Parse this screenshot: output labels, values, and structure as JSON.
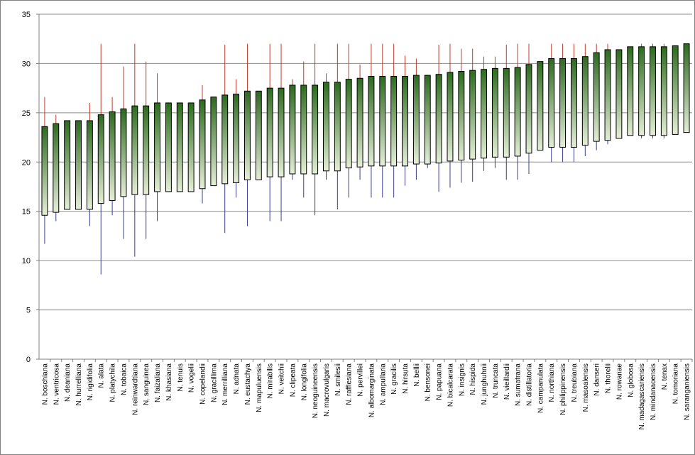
{
  "chart_data": {
    "type": "range-bar",
    "description_free": true,
    "ylim": [
      0,
      35
    ],
    "yticks": [
      0,
      5,
      10,
      15,
      20,
      25,
      30,
      35
    ],
    "grid": true,
    "colors": {
      "bar_top": "#2d6a1f",
      "bar_bottom": "#e6efd8",
      "bar_border": "#000000",
      "whisker_up": "#c0392b",
      "whisker_down": "#3b3b8f",
      "gridline": "#8c8c8c",
      "frame": "#808080"
    },
    "categories": [
      "N. boschiana",
      "N. ventricosa",
      "N. deaniana",
      "N. hurrelliana",
      "N. rigidifolia",
      "N. alata",
      "N. platychila",
      "N. tobaica",
      "N. reinwardtiana",
      "N. sanguinea",
      "N. faizaliana",
      "N. khasiana",
      "N. tenuis",
      "N. vogelii",
      "N. copelandii",
      "N. gracillima",
      "N. merrilliana",
      "N. adnata",
      "N. eustachya",
      "N. mapuluensis",
      "N. mirabilis",
      "N. veitchii",
      "N. clipeata",
      "N. longifolia",
      "N. neoguineensis",
      "N. macrovulgaris",
      "N. smilesii",
      "N. rafflesiana",
      "N. pervillei",
      "N. albomarginata",
      "N. ampullaria",
      "N. gracilis",
      "N. hirsuta",
      "N. bellii",
      "N. bensonei",
      "N. papuana",
      "N. bicalcarata",
      "N. insignis",
      "N. hispida",
      "N. junghuhnii",
      "N. truncata",
      "N. vieillardii",
      "N. sumatrana",
      "N. distillatoria",
      "N. campanulata",
      "N. northiana",
      "N. philippinensis",
      "N. treubiana",
      "N. masoalensis",
      "N. danseri",
      "N. thorelii",
      "N. rowanae",
      "N. globosa",
      "N. madagascariensis",
      "N. mindanaoensis",
      "N. tenax",
      "N. tomoriana",
      "N. saranganiensis"
    ],
    "series": [
      {
        "values_low": [
          14.6,
          14.9,
          15.2,
          15.2,
          15.2,
          15.8,
          16.1,
          16.5,
          16.7,
          16.7,
          17.0,
          17.0,
          17.0,
          17.0,
          17.3,
          17.6,
          17.8,
          17.9,
          18.2,
          18.2,
          18.5,
          18.5,
          18.8,
          18.8,
          18.8,
          19.1,
          19.1,
          19.4,
          19.5,
          19.6,
          19.6,
          19.6,
          19.6,
          19.8,
          19.8,
          19.9,
          20.1,
          20.2,
          20.3,
          20.4,
          20.5,
          20.5,
          20.6,
          20.9,
          21.2,
          21.5,
          21.5,
          21.5,
          21.7,
          22.1,
          22.2,
          22.4,
          22.7,
          22.7,
          22.7,
          22.7,
          22.8,
          23.0
        ]
      },
      {
        "values_high": [
          23.6,
          23.9,
          24.2,
          24.2,
          24.2,
          24.8,
          25.1,
          25.4,
          25.7,
          25.7,
          26.0,
          26.0,
          26.0,
          26.0,
          26.3,
          26.6,
          26.8,
          26.9,
          27.2,
          27.2,
          27.5,
          27.5,
          27.8,
          27.8,
          27.8,
          28.1,
          28.1,
          28.4,
          28.5,
          28.7,
          28.7,
          28.7,
          28.7,
          28.8,
          28.8,
          28.9,
          29.1,
          29.2,
          29.3,
          29.4,
          29.5,
          29.5,
          29.6,
          29.9,
          30.2,
          30.5,
          30.5,
          30.5,
          30.7,
          31.1,
          31.4,
          31.4,
          31.7,
          31.7,
          31.7,
          31.7,
          31.8,
          32.0
        ]
      },
      {
        "whisker_high": [
          26.6,
          24.8,
          null,
          null,
          26.0,
          32.0,
          26.6,
          29.7,
          32.0,
          30.2,
          29.0,
          null,
          null,
          null,
          27.8,
          null,
          31.9,
          28.4,
          32.0,
          null,
          32.0,
          32.0,
          28.4,
          30.2,
          32.0,
          29.0,
          32.0,
          32.0,
          29.9,
          32.0,
          32.0,
          32.0,
          30.8,
          30.5,
          null,
          31.9,
          32.0,
          31.5,
          31.5,
          30.7,
          30.7,
          31.9,
          32.0,
          32.0,
          null,
          32.0,
          32.0,
          32.0,
          32.0,
          32.0,
          32.0,
          null,
          null,
          32.0,
          32.0,
          32.0,
          null,
          null
        ]
      },
      {
        "whisker_low": [
          11.7,
          14.0,
          null,
          null,
          13.5,
          8.6,
          14.6,
          12.2,
          10.4,
          12.2,
          14.0,
          null,
          null,
          null,
          15.8,
          null,
          12.8,
          16.4,
          13.5,
          null,
          14.0,
          14.0,
          18.2,
          16.4,
          14.6,
          18.2,
          15.2,
          16.4,
          18.2,
          16.4,
          16.4,
          16.4,
          17.6,
          18.2,
          19.4,
          17.0,
          17.4,
          17.9,
          18.0,
          19.1,
          19.4,
          18.2,
          18.2,
          18.8,
          null,
          20.0,
          20.0,
          20.0,
          20.6,
          21.2,
          21.8,
          null,
          null,
          22.4,
          22.4,
          22.4,
          null,
          null
        ]
      }
    ]
  }
}
